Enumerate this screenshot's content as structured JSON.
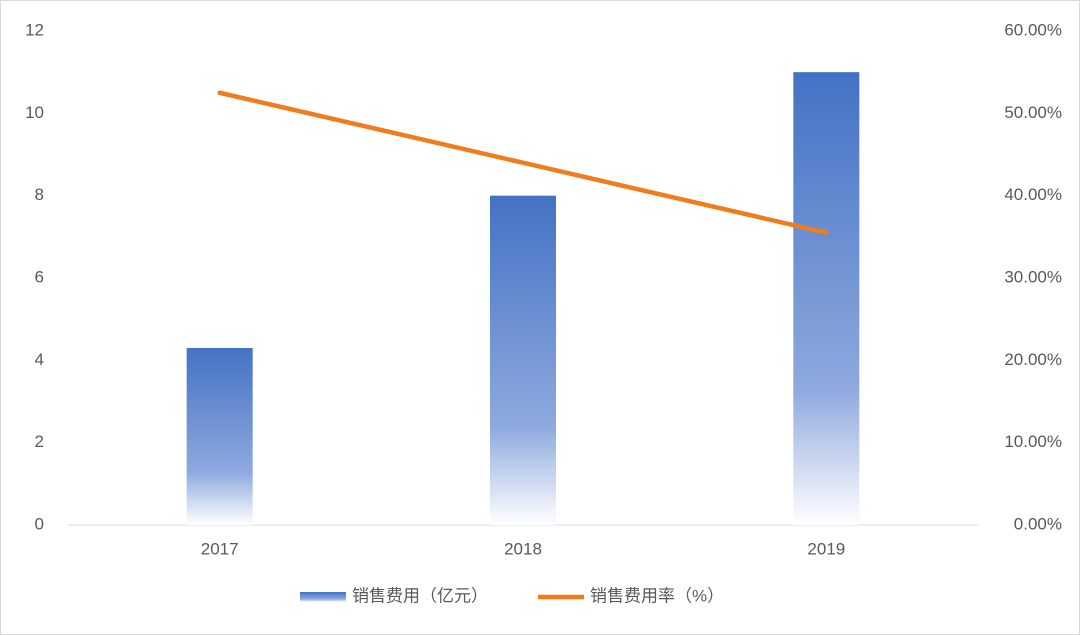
{
  "chart_data": {
    "type": "bar-line",
    "categories": [
      "2017",
      "2018",
      "2019"
    ],
    "series": [
      {
        "name": "销售费用（亿元）",
        "type": "bar",
        "color": "#4472c4",
        "values": [
          4.3,
          8,
          11
        ]
      },
      {
        "name": "销售费用率（%）",
        "type": "line",
        "color": "#f07c1c",
        "axis": "y2",
        "values": [
          52.5,
          44,
          35.5
        ]
      }
    ],
    "ylim": [
      0,
      12
    ],
    "yticks": [
      0,
      2,
      4,
      6,
      8,
      10,
      12
    ],
    "y2lim": [
      0,
      60
    ],
    "y2ticks": [
      {
        "value": 0,
        "label": "0.00%"
      },
      {
        "value": 10,
        "label": "10.00%"
      },
      {
        "value": 20,
        "label": "20.00%"
      },
      {
        "value": 30,
        "label": "30.00%"
      },
      {
        "value": 40,
        "label": "40.00%"
      },
      {
        "value": 50,
        "label": "50.00%"
      },
      {
        "value": 60,
        "label": "60.00%"
      }
    ],
    "legend": "bottom"
  }
}
